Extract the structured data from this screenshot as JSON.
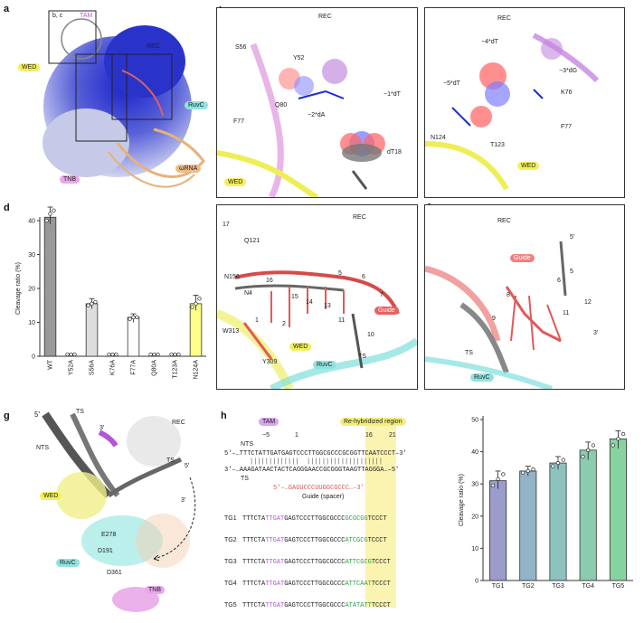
{
  "panel_letters": {
    "a": "a",
    "b": "b",
    "c": "c",
    "d": "d",
    "e": "e",
    "f": "f",
    "g": "g",
    "h": "h"
  },
  "panel_a": {
    "inset_label": "b, c",
    "labels": {
      "tam": "TAM",
      "rec": "REC",
      "wed": "WED",
      "ruvc": "RuvC",
      "tnb": "TNB",
      "orna": "ωRNA"
    }
  },
  "panel_b": {
    "labels": {
      "rec": "REC",
      "s56": "S56",
      "y52": "Y52",
      "q80": "Q80",
      "m1dt": "−1*dT",
      "m2da": "−2*dA",
      "f77": "F77",
      "dt18": "dT18",
      "wed": "WED"
    }
  },
  "panel_c": {
    "labels": {
      "rec": "REC",
      "m4dt": "−4*dT",
      "m3dg": "−3*dG",
      "m5dt": "−5*dT",
      "k76": "K76",
      "f77": "F77",
      "n124": "N124",
      "t123": "T123",
      "wed": "WED"
    }
  },
  "panel_e": {
    "labels": {
      "rec": "REC",
      "n17": "17",
      "q121": "Q121",
      "n156": "N156",
      "n4": "N4",
      "n16": "16",
      "n15": "15",
      "n14": "14",
      "n13": "13",
      "n5": "5",
      "n6": "6",
      "n7": "7",
      "n11": "11",
      "n10": "10",
      "n1": "1",
      "n2": "2",
      "w313": "W313",
      "y309": "Y309",
      "wed": "WED",
      "ruvc": "RuvC",
      "ts": "TS",
      "guide": "Guide"
    }
  },
  "panel_f": {
    "labels": {
      "rec": "REC",
      "guide": "Guide",
      "p5": "5′",
      "n5": "5",
      "n6": "6",
      "n8": "8",
      "n12": "12",
      "n9": "9",
      "n11": "11",
      "p3": "3′",
      "ts": "TS",
      "ruvc": "RuvC"
    }
  },
  "panel_g": {
    "labels": {
      "p5": "5′",
      "ts": "TS",
      "p3": "3′",
      "rec": "REC",
      "nts": "NTS",
      "ts2": "TS",
      "p5b": "5′",
      "wed": "WED",
      "p3b": "3′",
      "e278": "E278",
      "d191": "D191",
      "ruvc": "RuvC",
      "d361": "D361",
      "tnb": "TNB"
    }
  },
  "panel_h": {
    "tam": "TAM",
    "rehyb": "Re-hybridized region",
    "num_m5": "−5",
    "num_1": "1",
    "num_16": "16",
    "num_21": "21",
    "nts_label": "NTS",
    "ts_label": "TS",
    "nts_seq": "5′–…TTTCTATTGATGAGTCCCTTGGCGCCCGCGGTTCAATCCCT–3′",
    "ts_seq": "3′–…AAAGATAACTACTCAGGGAACCGCGGGTAAGTTAGGGA…–5′",
    "guide_seq": "5′–…GAGUCCCUUGGCGCCC…–3′",
    "guide_caption": "Guide (spacer)",
    "rows": [
      {
        "id": "TG1",
        "pre": "TTTCTA",
        "tam": "TTGAT",
        "mid": "GAGTCCCTTGGCGCCC",
        "hyb": "GCGCGG",
        "post": "TCCCT"
      },
      {
        "id": "TG2",
        "pre": "TTTCTA",
        "tam": "TTGAT",
        "mid": "GAGTCCCTTGGCGCCC",
        "hyb": "ATCGCG",
        "post": "TCCCT"
      },
      {
        "id": "TG3",
        "pre": "TTTCTA",
        "tam": "TTGAT",
        "mid": "GAGTCCCTTGGCGCCC",
        "hyb": "ATTCGCG",
        "post": "TCCCT"
      },
      {
        "id": "TG4",
        "pre": "TTTCTA",
        "tam": "TTGAT",
        "mid": "GAGTCCCTTGGCGCCC",
        "hyb": "ATTCAAT",
        "post": "TCCCT"
      },
      {
        "id": "TG5",
        "pre": "TTTCTA",
        "tam": "TTGAT",
        "mid": "GAGTCCCTTGGCGCCC",
        "hyb": "ATATATT",
        "post": "TCCCT"
      }
    ]
  },
  "colors": {
    "tam": "#b455d6",
    "rehyb": "#fbf3b0",
    "hybtext": "#2f9e44",
    "guide": "#e05353",
    "wed": "#e8e85a",
    "ruvc": "#7fe0dc",
    "tnb": "#e69ee6",
    "orna": "#e5b27a"
  },
  "chart_data": [
    {
      "type": "bar",
      "panel": "d",
      "categories": [
        "WT",
        "Y52A",
        "S56A",
        "K76A",
        "F77A",
        "Q80A",
        "T123A",
        "N124A"
      ],
      "values": [
        41,
        0,
        15.5,
        0,
        11.5,
        0,
        0,
        15.5
      ],
      "points": [
        [
          40,
          42,
          43
        ],
        [
          0,
          0,
          0
        ],
        [
          15,
          15.5,
          16
        ],
        [
          0,
          0,
          0
        ],
        [
          11,
          11.5,
          11.5
        ],
        [
          0,
          0,
          0
        ],
        [
          0,
          0,
          0
        ],
        [
          14.5,
          15.5,
          17
        ]
      ],
      "colors": [
        "#999999",
        "#ffffff",
        "#dddddd",
        "#ffffff",
        "#ffffff",
        "#ffffff",
        "#ffffff",
        "#ffff88"
      ],
      "ylabel": "Cleavage ratio (%)",
      "ylim": [
        0,
        40
      ],
      "yticks": [
        0,
        10,
        20,
        30,
        40
      ]
    },
    {
      "type": "bar",
      "panel": "h",
      "categories": [
        "TG1",
        "TG2",
        "TG3",
        "TG4",
        "TG5"
      ],
      "values": [
        31,
        34,
        36.5,
        40.5,
        44
      ],
      "points": [
        [
          29.5,
          31.5,
          33
        ],
        [
          33.5,
          34,
          34.5
        ],
        [
          35.5,
          36.5,
          37.5
        ],
        [
          38.5,
          40.5,
          42
        ],
        [
          42,
          44,
          45.5
        ]
      ],
      "colors": [
        "#9a9ccc",
        "#93b3c7",
        "#8dc3bd",
        "#8bcbb0",
        "#87d3a0"
      ],
      "ylabel": "Cleavage ratio (%)",
      "ylim": [
        0,
        50
      ],
      "yticks": [
        0,
        10,
        20,
        30,
        40,
        50
      ]
    }
  ]
}
